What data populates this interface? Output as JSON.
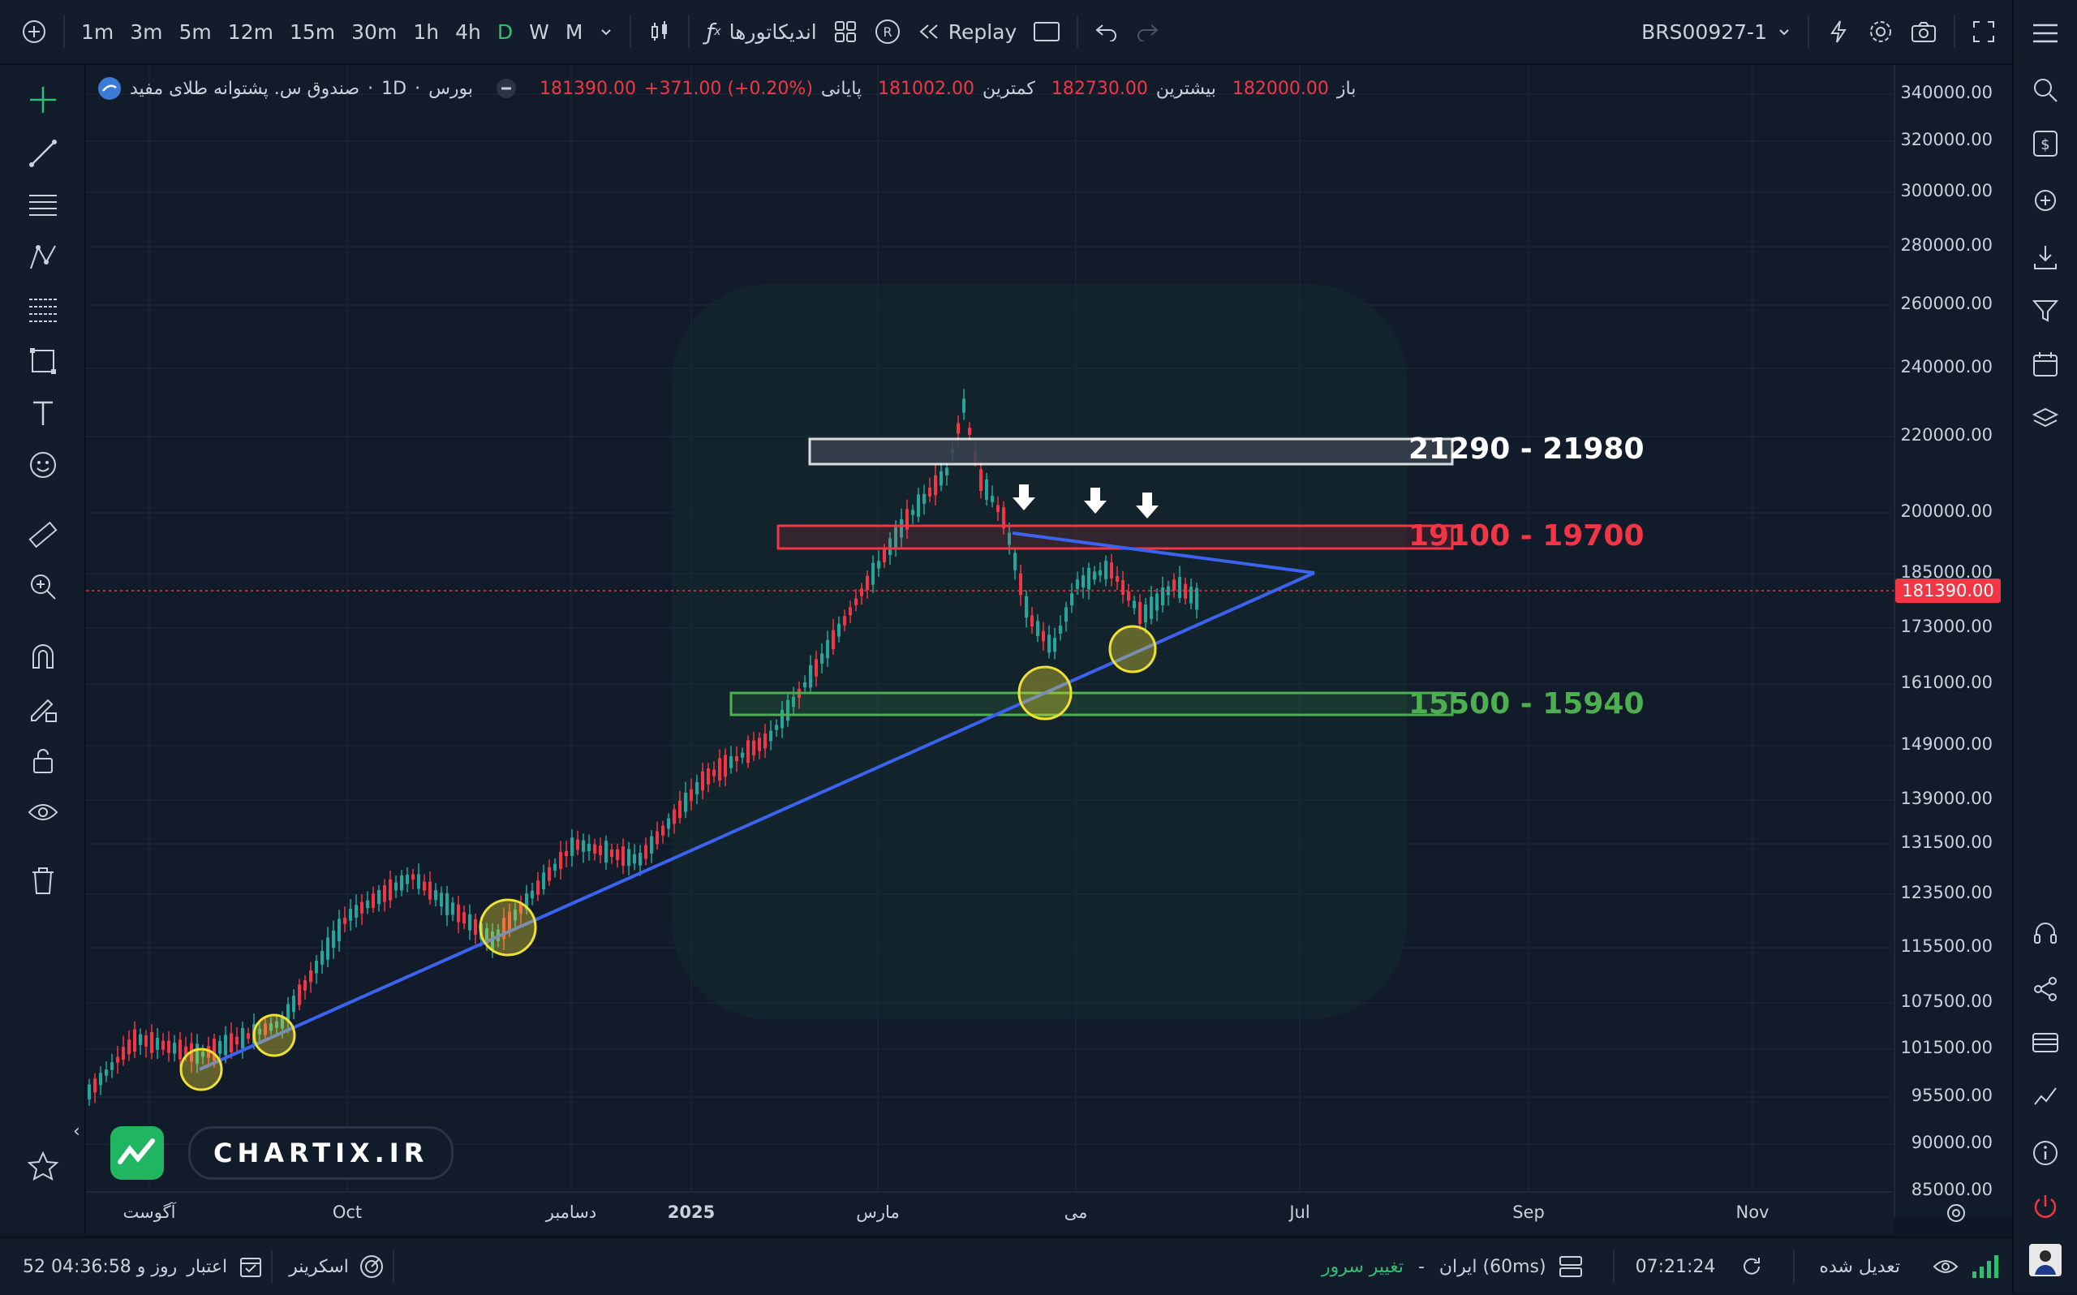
{
  "topbar": {
    "timeframes": [
      "1m",
      "3m",
      "5m",
      "12m",
      "15m",
      "30m",
      "1h",
      "4h",
      "D",
      "W",
      "M"
    ],
    "active_timeframe": "D",
    "indicators_label": "اندیکاتورها",
    "replay_label": "Replay",
    "symbol": "BRS00927-1"
  },
  "legend": {
    "title": "صندوق س. پشتوانه طلای مفید",
    "interval": "1D",
    "exchange": "بورس",
    "open_label": "باز",
    "open": "182000.00",
    "high_label": "بیشترین",
    "high": "182730.00",
    "low_label": "کمترین",
    "low": "181002.00",
    "close_label": "پایانی",
    "close": "181390.00",
    "change": "+371.00 (+0.20%)"
  },
  "zones": [
    {
      "label": "21290 - 21980",
      "color": "#ffffff"
    },
    {
      "label": "19100 - 19700",
      "color": "#f23645"
    },
    {
      "label": "15500 - 15940",
      "color": "#4caf50"
    }
  ],
  "price_scale": [
    "340000.00",
    "320000.00",
    "300000.00",
    "280000.00",
    "260000.00",
    "240000.00",
    "220000.00",
    "200000.00",
    "185000.00",
    "173000.00",
    "161000.00",
    "149000.00",
    "139000.00",
    "131500.00",
    "123500.00",
    "115500.00",
    "107500.00",
    "101500.00",
    "95500.00",
    "90000.00",
    "85000.00"
  ],
  "last_price": "181390.00",
  "time_scale": [
    "آگوست",
    "Oct",
    "دسامبر",
    "2025",
    "مارس",
    "می",
    "Jul",
    "Sep",
    "Nov"
  ],
  "watermark": "CHARTIX.IR",
  "bottombar": {
    "trial_label": "اعتبار",
    "trial_value": "52 روز و 04:36:58",
    "screener_label": "اسکرینر",
    "server_change": "تغییر سرور",
    "server_region": "ایران (60ms)",
    "dash": "-",
    "time": "07:21:24",
    "adjusted": "تعدیل شده"
  },
  "colors": {
    "background": "#121b2a",
    "up": "#26a69a",
    "down": "#f23645",
    "trendline": "#3b63f0",
    "circle": "#f0e130"
  }
}
